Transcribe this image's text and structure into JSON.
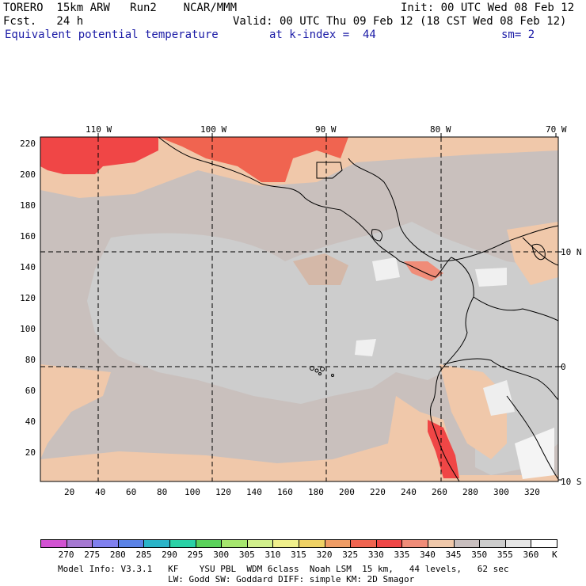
{
  "header": {
    "model": "TORERO  15km ARW   Run2    NCAR/MMM",
    "init": "Init: 00 UTC Wed 08 Feb 12",
    "fcst": "Fcst.   24 h",
    "valid": "Valid: 00 UTC Thu 09 Feb 12 (18 CST Wed 08 Feb 12)",
    "field": "Equivalent potential temperature",
    "level": "at k-index =  44",
    "smooth": "sm= 2"
  },
  "map": {
    "lon_labels": [
      "110 W",
      "100 W",
      "90 W",
      "80 W",
      "70 W"
    ],
    "lat_labels": [
      "10 N",
      "0",
      "10 S"
    ],
    "x_ticks": [
      "20",
      "40",
      "60",
      "80",
      "100",
      "120",
      "140",
      "160",
      "180",
      "200",
      "220",
      "240",
      "260",
      "280",
      "300",
      "320"
    ],
    "y_ticks": [
      "220",
      "200",
      "180",
      "160",
      "140",
      "120",
      "100",
      "80",
      "60",
      "40",
      "20"
    ]
  },
  "colorbar": {
    "unit": "K",
    "levels": [
      "270",
      "275",
      "280",
      "285",
      "290",
      "295",
      "300",
      "305",
      "310",
      "315",
      "320",
      "325",
      "330",
      "335",
      "340",
      "345",
      "350",
      "355",
      "360"
    ],
    "colors": [
      "#d252d2",
      "#a678d2",
      "#8080ee",
      "#5a82e6",
      "#2ab4c8",
      "#2ad2a6",
      "#5ad25a",
      "#a6e66e",
      "#d2f08c",
      "#f0f08c",
      "#f0d264",
      "#f09c64",
      "#f06450",
      "#f04646",
      "#f08c78",
      "#f0c8aa",
      "#c8bebe",
      "#cdcdcd",
      "#e6e6e6",
      "#ffffff"
    ]
  },
  "footer": {
    "line1": "Model Info: V3.3.1   KF    YSU PBL  WDM 6class  Noah LSM  15 km,   44 levels,   62 sec",
    "line2": "LW: Godd SW: Goddard DIFF: simple KM: 2D Smagor"
  }
}
